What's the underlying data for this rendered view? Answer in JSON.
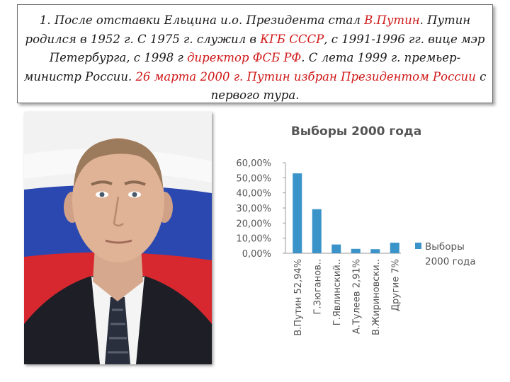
{
  "paragraph": {
    "t1": "1. После отставки Ельцина и.о. Президента стал ",
    "h1": "В.Путин",
    "t2": ". Путин родился в 1952 г. С 1975 г. служил в ",
    "h2": "КГБ СССР",
    "t3": ", с 1991-1996 гг. вице мэр Петербурга, с 1998 г ",
    "h3": "директор ФСБ РФ",
    "t4": ". С лета 1999 г. премьер-министр России. ",
    "h4": "26 марта 2000 г. Путин избран Президентом России",
    "t5": " с первого тура."
  },
  "colors": {
    "highlight": "#d01818",
    "bar": "#3a93c9",
    "flag_white": "#f2f2f2",
    "flag_blue": "#2a48b0",
    "flag_red": "#d8282f"
  },
  "photo": {
    "icon": "portrait-photo"
  },
  "chart_data": {
    "type": "bar",
    "title": "Выборы 2000 года",
    "categories": [
      "В.Путин 52,94%",
      "Г.Зюганов..",
      "Г.Явлинский..",
      "А.Тулеев 2,91%",
      "В.Жириновски..",
      "Другие 7%"
    ],
    "series": [
      {
        "name": "Выборы 2000 года",
        "values": [
          52.94,
          29.2,
          5.8,
          2.91,
          2.7,
          7.0
        ]
      }
    ],
    "ylim": [
      0,
      60
    ],
    "yticks": [
      "0,00%",
      "10,00%",
      "20,00%",
      "30,00%",
      "40,00%",
      "50,00%",
      "60,00%"
    ],
    "legend_position": "right",
    "grid": false
  }
}
